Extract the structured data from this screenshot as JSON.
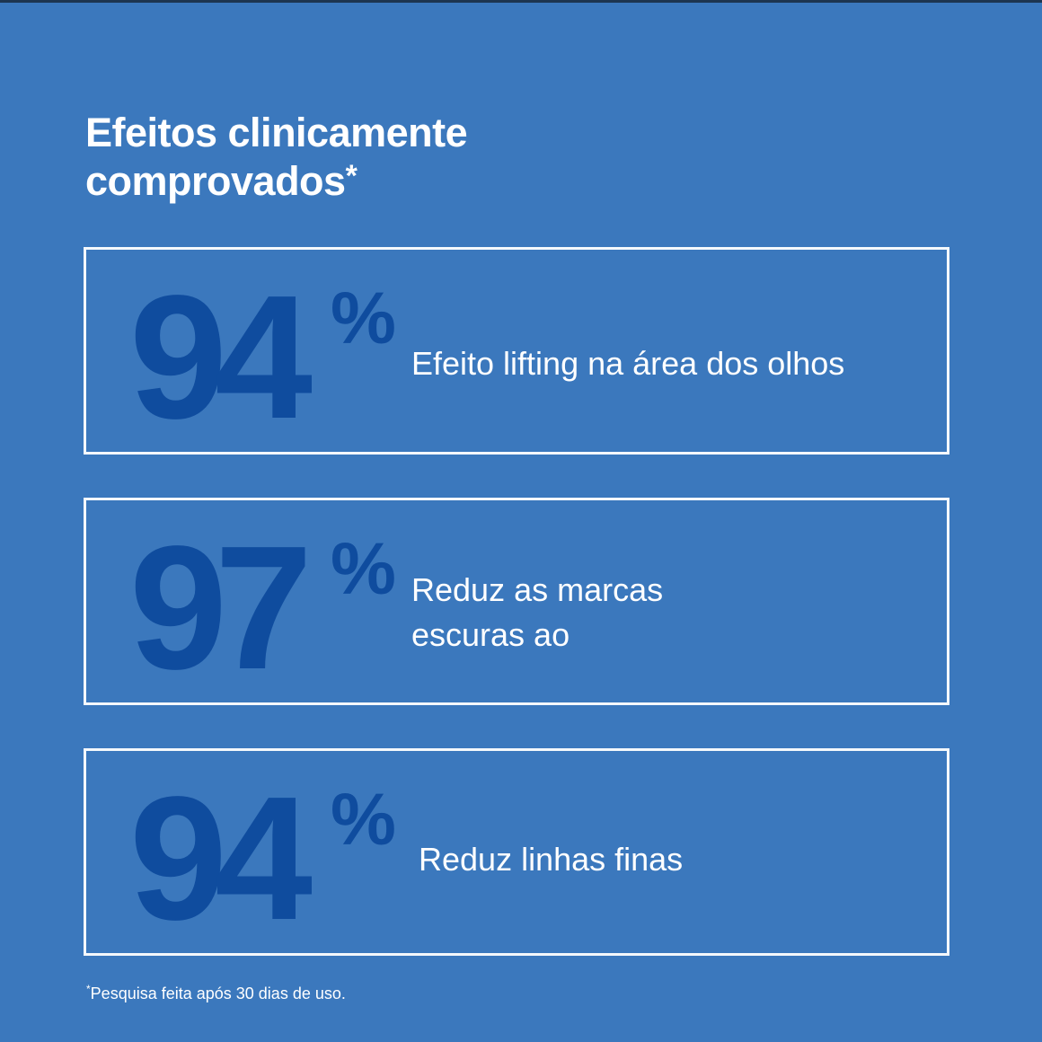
{
  "title": {
    "line1": "Efeitos clinicamente",
    "line2": "comprovados",
    "asterisk": "*"
  },
  "stats": [
    {
      "value": "94",
      "unit": "%",
      "label_lines": [
        "Efeito lifting na área dos olhos"
      ]
    },
    {
      "value": "97",
      "unit": "%",
      "label_lines": [
        "Reduz as marcas",
        "escuras ao"
      ]
    },
    {
      "value": "94",
      "unit": "%",
      "label_lines": [
        "Reduz linhas finas"
      ]
    }
  ],
  "footnote": {
    "asterisk": "*",
    "text": "Pesquisa feita após 30 dias de uso."
  },
  "colors": {
    "background": "#3b78bd",
    "number": "#0f4c9e",
    "text": "#ffffff"
  }
}
